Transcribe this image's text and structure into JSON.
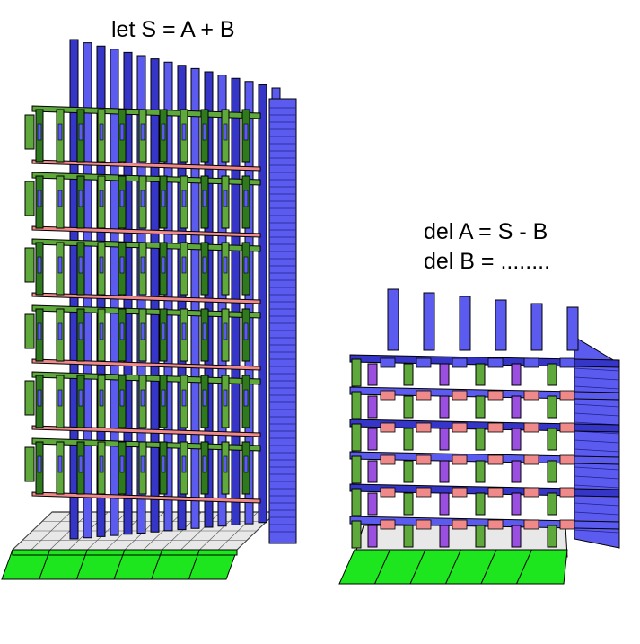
{
  "labels": {
    "left": "let S = A + B",
    "right_line1": "del A = S - B",
    "right_line2": "del B = ........"
  },
  "colors": {
    "base_green": "#1ee61e",
    "base_grid": "#e8e8e8",
    "blue": "#5b5bf0",
    "blue_dark": "#3535c8",
    "green": "#5fa83c",
    "green_dark": "#2f7a1e",
    "pink": "#f08a8a",
    "purple": "#9a4fe0",
    "outline": "#000000"
  }
}
